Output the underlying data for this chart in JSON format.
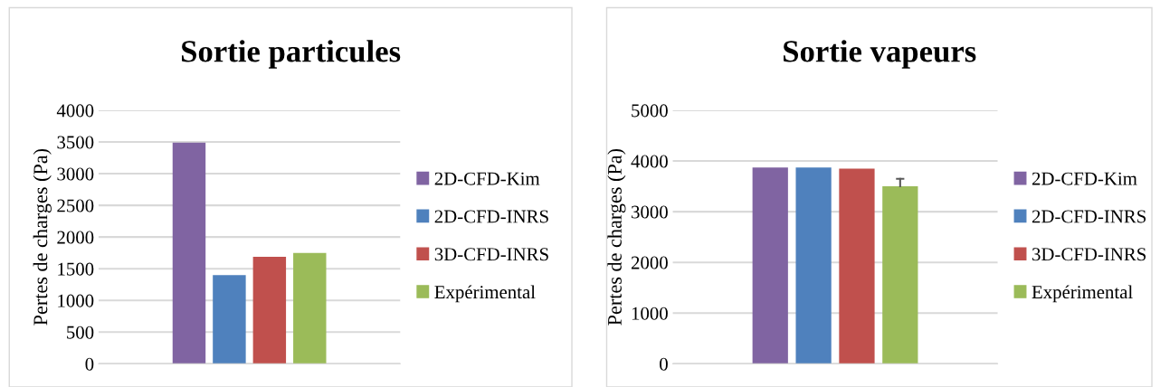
{
  "chart_data": [
    {
      "type": "bar",
      "title": "Sortie particules",
      "ylabel": "Pertes de charges (Pa)",
      "categories": [
        null
      ],
      "ylim": [
        0,
        4000
      ],
      "yticks": [
        0,
        500,
        1000,
        1500,
        2000,
        2500,
        3000,
        3500,
        4000
      ],
      "grid": "y",
      "legend": "right",
      "series": [
        {
          "name": "2D-CFD-Kim",
          "color": "#8064a2",
          "values": [
            3490
          ]
        },
        {
          "name": "2D-CFD-INRS",
          "color": "#4f81bd",
          "values": [
            1400
          ]
        },
        {
          "name": "3D-CFD-INRS",
          "color": "#c0504d",
          "values": [
            1690
          ]
        },
        {
          "name": "Expérimental",
          "color": "#9bbb59",
          "values": [
            1750
          ]
        }
      ]
    },
    {
      "type": "bar",
      "title": "Sortie vapeurs",
      "ylabel": "Pertes de charges (Pa)",
      "categories": [
        null
      ],
      "ylim": [
        0,
        5000
      ],
      "yticks": [
        0,
        1000,
        2000,
        3000,
        4000,
        5000
      ],
      "grid": "y",
      "legend": "right",
      "series": [
        {
          "name": "2D-CFD-Kim",
          "color": "#8064a2",
          "values": [
            3870
          ]
        },
        {
          "name": "2D-CFD-INRS",
          "color": "#4f81bd",
          "values": [
            3870
          ]
        },
        {
          "name": "3D-CFD-INRS",
          "color": "#c0504d",
          "values": [
            3850
          ]
        },
        {
          "name": "Expérimental",
          "color": "#9bbb59",
          "values": [
            3500
          ],
          "errors": [
            [
              3500,
              3650
            ]
          ]
        }
      ]
    }
  ]
}
